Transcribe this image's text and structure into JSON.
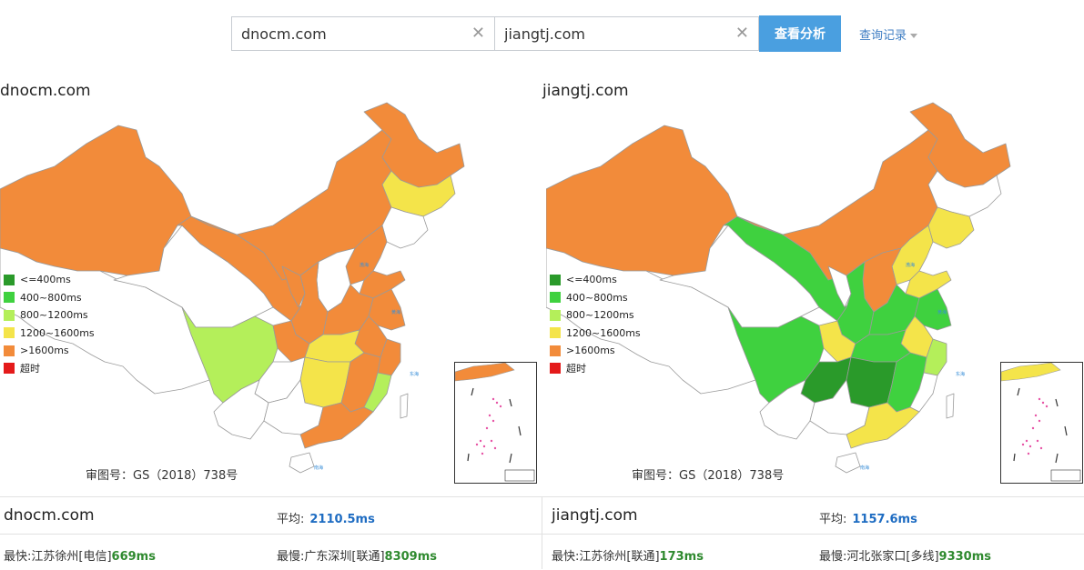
{
  "search": {
    "domain1": "dnocm.com",
    "domain2": "jiangtj.com",
    "submit_label": "查看分析",
    "history_label": "查询记录"
  },
  "legend": [
    {
      "label": "<=400ms",
      "color": "#2a9a2a"
    },
    {
      "label": "400~800ms",
      "color": "#3fd13f"
    },
    {
      "label": "800~1200ms",
      "color": "#b4ef5a"
    },
    {
      "label": "1200~1600ms",
      "color": "#f4e44a"
    },
    {
      "label": ">1600ms",
      "color": "#f28b3a"
    },
    {
      "label": "超时",
      "color": "#e41a1a"
    }
  ],
  "panels": [
    {
      "title": "dnocm.com",
      "approval": "审图号：GS（2018）738号",
      "colors": {
        "xinjiang": "#f28b3a",
        "xizang": "#ffffff",
        "qinghai": "#ffffff",
        "gansu": "#f28b3a",
        "neimenggu": "#f28b3a",
        "heilongjiang": "#f28b3a",
        "jilin": "#f4e44a",
        "liaoning": "#ffffff",
        "ningxia": "#f28b3a",
        "shaanxi": "#f28b3a",
        "shanxi": "#ffffff",
        "hebei": "#f28b3a",
        "shandong": "#f28b3a",
        "henan": "#f28b3a",
        "sichuan": "#b4ef5a",
        "chongqing": "#f28b3a",
        "hubei": "#f4e44a",
        "anhui": "#f28b3a",
        "jiangsu": "#f28b3a",
        "zhejiang": "#f28b3a",
        "guizhou": "#ffffff",
        "yunnan": "#ffffff",
        "hunan": "#f4e44a",
        "jiangxi": "#f28b3a",
        "fujian": "#b4ef5a",
        "guangxi": "#ffffff",
        "guangdong": "#f28b3a",
        "hainan": "#ffffff",
        "taiwan": "#ffffff",
        "inset": "#f28b3a"
      }
    },
    {
      "title": "jiangtj.com",
      "approval": "审图号：GS（2018）738号",
      "colors": {
        "xinjiang": "#f28b3a",
        "xizang": "#ffffff",
        "qinghai": "#ffffff",
        "gansu": "#3fd13f",
        "neimenggu": "#f28b3a",
        "heilongjiang": "#f28b3a",
        "jilin": "#ffffff",
        "liaoning": "#f4e44a",
        "ningxia": "#ffffff",
        "shaanxi": "#3fd13f",
        "shanxi": "#f28b3a",
        "hebei": "#f4e44a",
        "shandong": "#f4e44a",
        "henan": "#3fd13f",
        "sichuan": "#3fd13f",
        "chongqing": "#f4e44a",
        "hubei": "#3fd13f",
        "anhui": "#f4e44a",
        "jiangsu": "#3fd13f",
        "zhejiang": "#b4ef5a",
        "guizhou": "#2a9a2a",
        "yunnan": "#ffffff",
        "hunan": "#2a9a2a",
        "jiangxi": "#3fd13f",
        "fujian": "#ffffff",
        "guangxi": "#ffffff",
        "guangdong": "#f4e44a",
        "hainan": "#ffffff",
        "taiwan": "#ffffff",
        "inset": "#f4e44a"
      }
    }
  ],
  "stats": [
    {
      "domain": "dnocm.com",
      "avg_label": "平均:",
      "avg_value": "2110.5ms",
      "fastest_label": "最快:",
      "fastest_loc": "江苏徐州[电信]",
      "fastest_value": "669ms",
      "slowest_label": "最慢:",
      "slowest_loc": "广东深圳[联通]",
      "slowest_value": "8309ms"
    },
    {
      "domain": "jiangtj.com",
      "avg_label": "平均:",
      "avg_value": "1157.6ms",
      "fastest_label": "最快:",
      "fastest_loc": "江苏徐州[联通]",
      "fastest_value": "173ms",
      "slowest_label": "最慢:",
      "slowest_loc": "河北张家口[多线]",
      "slowest_value": "9330ms"
    }
  ]
}
